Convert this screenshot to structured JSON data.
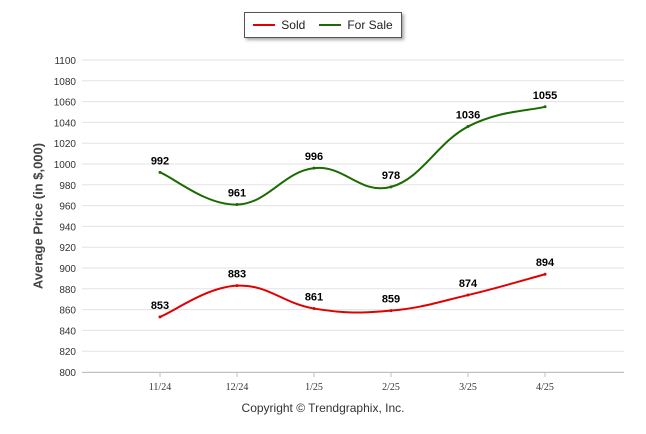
{
  "chart_data": {
    "type": "line",
    "categories": [
      "11/24",
      "12/24",
      "1/25",
      "2/25",
      "3/25",
      "4/25"
    ],
    "series": [
      {
        "name": "Sold",
        "color": "#e00000",
        "values": [
          853,
          883,
          861,
          859,
          874,
          894
        ]
      },
      {
        "name": "For Sale",
        "color": "#1a6b00",
        "values": [
          992,
          961,
          996,
          978,
          1036,
          1055
        ]
      }
    ],
    "ylabel": "Average Price (in $,000)",
    "ylim": [
      800,
      1100
    ],
    "yticks": [
      800,
      820,
      840,
      860,
      880,
      900,
      920,
      940,
      960,
      980,
      1000,
      1020,
      1040,
      1060,
      1080,
      1100
    ],
    "grid": true,
    "legend_position": "top-center",
    "footer": "Copyright © Trendgraphix, Inc."
  }
}
